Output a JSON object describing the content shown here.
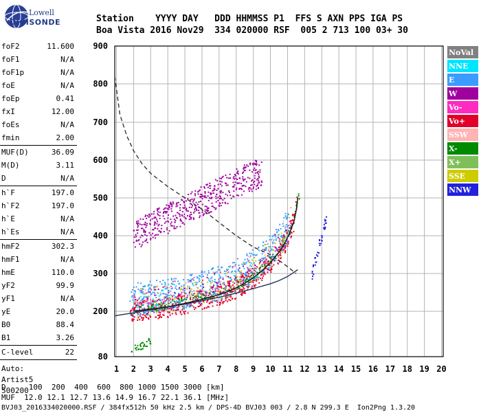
{
  "logo": {
    "line1": "Lowell",
    "line2": "DIGISONDE"
  },
  "header": {
    "line1": "Station    YYYY DAY   DDD HHMMSS P1  FFS S AXN PPS IGA PS",
    "line2": "Boa Vista 2016 Nov29  334 020000 RSF  005 2 713 100 03+ 30"
  },
  "params": [
    [
      {
        "label": "foF2",
        "value": "11.600"
      },
      {
        "label": "foF1",
        "value": "N/A"
      },
      {
        "label": "foF1p",
        "value": "N/A"
      },
      {
        "label": "foE",
        "value": "N/A"
      },
      {
        "label": "foEp",
        "value": "0.41"
      },
      {
        "label": "fxI",
        "value": "12.00"
      },
      {
        "label": "foEs",
        "value": "N/A"
      },
      {
        "label": "fmin",
        "value": "2.00"
      }
    ],
    [
      {
        "label": "MUF(D)",
        "value": "36.09"
      },
      {
        "label": "M(D)",
        "value": "3.11"
      },
      {
        "label": "D",
        "value": "N/A"
      }
    ],
    [
      {
        "label": "h`F",
        "value": "197.0"
      },
      {
        "label": "h`F2",
        "value": "197.0"
      },
      {
        "label": "h`E",
        "value": "N/A"
      },
      {
        "label": "h`Es",
        "value": "N/A"
      }
    ],
    [
      {
        "label": "hmF2",
        "value": "302.3"
      },
      {
        "label": "hmF1",
        "value": "N/A"
      },
      {
        "label": "hmE",
        "value": "110.0"
      },
      {
        "label": "yF2",
        "value": "99.9"
      },
      {
        "label": "yF1",
        "value": "N/A"
      },
      {
        "label": "yE",
        "value": "20.0"
      },
      {
        "label": "B0",
        "value": "88.4"
      },
      {
        "label": "B1",
        "value": "3.26"
      }
    ],
    [
      {
        "label": "C-level",
        "value": "22"
      }
    ]
  ],
  "autoscaling": {
    "line1": "Auto:",
    "line2": "Artist5",
    "line3": "500200"
  },
  "footer": {
    "line1": "D     100  200  400  600  800 1000 1500 3000 [km]",
    "line2": "MUF  12.0 12.1 12.7 13.6 14.9 16.7 22.1 36.1 [MHz]",
    "line3": "BVJ03_2016334020000.RSF / 384fx512h 50 kHz 2.5 km / DPS-4D BVJ03 003 / 2.8 N 299.3 E  Ion2Png 1.3.20"
  },
  "colors": {
    "grid": "#b3b3b3",
    "trace_virtual": "#111111",
    "trace_true": "#223355",
    "muf_curve": "#333333"
  },
  "chart_data": {
    "type": "scatter",
    "title": "",
    "xlabel": "",
    "ylabel": "",
    "x_ticks": [
      1,
      2,
      3,
      4,
      5,
      6,
      7,
      8,
      9,
      10,
      11,
      12,
      13,
      14,
      15,
      16,
      17,
      18,
      19,
      20
    ],
    "y_ticks": [
      80,
      200,
      300,
      400,
      500,
      600,
      700,
      800,
      900
    ],
    "xlim": [
      0.9,
      20.1
    ],
    "ylim": [
      80,
      900
    ],
    "grid": true,
    "legend_position": "right",
    "legend": [
      {
        "name": "NoVal",
        "color": "#808080",
        "text_color": "#ffffff"
      },
      {
        "name": "NNE",
        "color": "#00e5ff",
        "text_color": "#ffffff"
      },
      {
        "name": "E",
        "color": "#3b9bff",
        "text_color": "#ffffff"
      },
      {
        "name": "W",
        "color": "#a0009e",
        "text_color": "#ffffff"
      },
      {
        "name": "Vo-",
        "color": "#ff2bc0",
        "text_color": "#ffffff"
      },
      {
        "name": "Vo+",
        "color": "#e0002a",
        "text_color": "#ffffff"
      },
      {
        "name": "SSW",
        "color": "#ffb3b3",
        "text_color": "#ffffff"
      },
      {
        "name": "X-",
        "color": "#008a00",
        "text_color": "#ffffff"
      },
      {
        "name": "X+",
        "color": "#7fbf5a",
        "text_color": "#ffffff"
      },
      {
        "name": "SSE",
        "color": "#cccc00",
        "text_color": "#ffffff"
      },
      {
        "name": "NNW",
        "color": "#2222dd",
        "text_color": "#ffffff"
      }
    ],
    "series": [
      {
        "name": "o-trace virtual height",
        "style": "solid",
        "color": "#111111",
        "x": [
          2.0,
          3.0,
          4.0,
          5.0,
          6.0,
          7.0,
          7.5,
          8.0,
          8.5,
          9.0,
          9.5,
          10.0,
          10.5,
          10.8,
          11.0,
          11.2,
          11.4,
          11.5,
          11.6
        ],
        "y": [
          200,
          206,
          212,
          221,
          232,
          244,
          252,
          262,
          274,
          289,
          307,
          329,
          356,
          377,
          395,
          416,
          442,
          465,
          500
        ]
      },
      {
        "name": "true height profile",
        "style": "solid",
        "color": "#223355",
        "x": [
          0.9,
          2.0,
          3.0,
          4.0,
          5.0,
          6.0,
          7.0,
          8.0,
          9.0,
          10.0,
          10.5,
          11.0,
          11.4,
          11.6
        ],
        "y": [
          188,
          196,
          204,
          211,
          219,
          228,
          237,
          248,
          260,
          273,
          281,
          292,
          304,
          310
        ]
      },
      {
        "name": "MUF curve",
        "style": "dashed",
        "color": "#333333",
        "x": [
          0.9,
          1.2,
          1.6,
          2.0,
          2.5,
          3.0,
          4.0,
          5.0,
          6.0,
          7.0,
          8.0,
          9.0,
          10.0,
          10.5,
          11.0,
          11.5
        ],
        "y": [
          820,
          720,
          665,
          625,
          590,
          565,
          530,
          500,
          470,
          435,
          400,
          370,
          350,
          335,
          318,
          300
        ]
      }
    ],
    "echo_clusters": [
      {
        "name": "F2 o-trace echoes",
        "legend": "Vo+",
        "x_range": [
          1.8,
          11.6
        ],
        "y_follow": "o-trace virtual height",
        "spread": 28,
        "count": 620
      },
      {
        "name": "F2 x-trace echoes",
        "legend": "X-",
        "x_range": [
          2.0,
          11.7
        ],
        "y_follow": "o-trace virtual height",
        "y_offset": 4,
        "spread": 10,
        "count": 180
      },
      {
        "name": "F layer spread",
        "legend": "E",
        "x_range": [
          1.8,
          11.2
        ],
        "y_follow": "o-trace virtual height",
        "y_offset": 30,
        "spread": 45,
        "count": 420
      },
      {
        "name": "multihop echoes",
        "legend": "W",
        "x_range": [
          2.0,
          9.5
        ],
        "y_start": 400,
        "y_end": 570,
        "spread": 40,
        "count": 520
      },
      {
        "name": "satellite echoes",
        "legend": "NNW",
        "x_range": [
          12.4,
          13.3
        ],
        "y_start": 290,
        "y_end": 450,
        "spread": 15,
        "count": 40
      },
      {
        "name": "low echoes",
        "legend": "X-",
        "x_range": [
          1.8,
          3.0
        ],
        "y_start": 95,
        "y_end": 120,
        "spread": 10,
        "count": 30
      }
    ]
  }
}
